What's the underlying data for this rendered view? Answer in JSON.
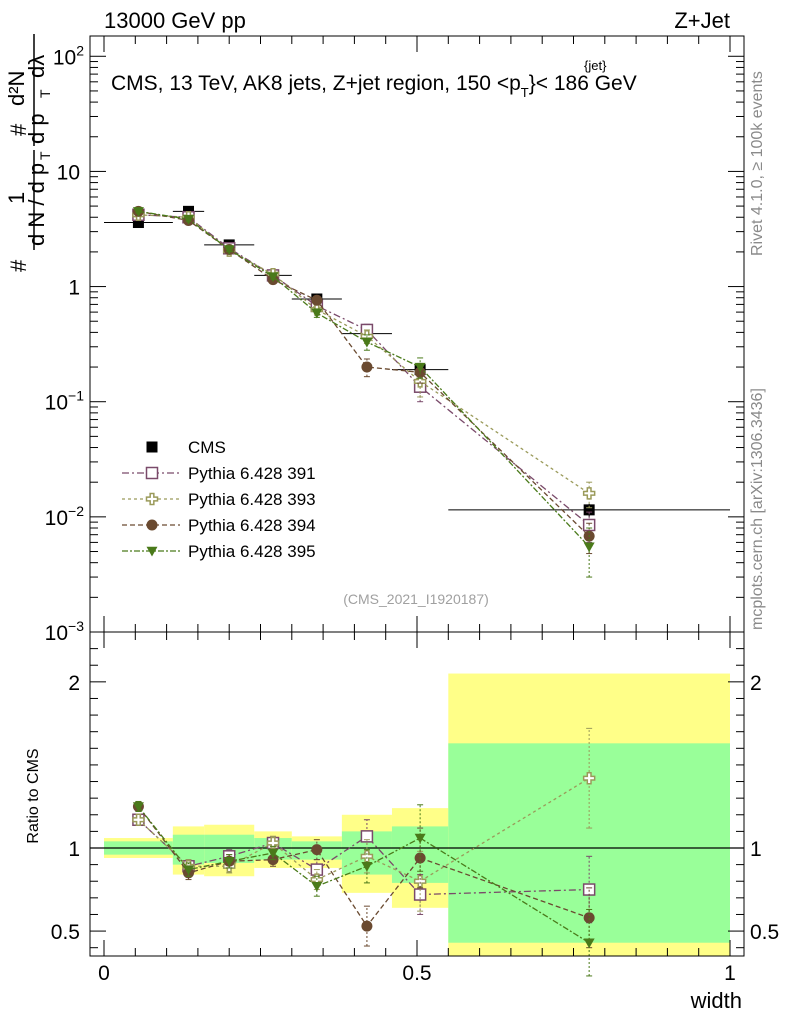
{
  "header": {
    "left": "13000 GeV pp",
    "right": "Z+Jet"
  },
  "side_labels": {
    "rivet": "Rivet 4.1.0, ≥ 100k events",
    "mcplots": "mcplots.cern.ch [arXiv:1306.3436]"
  },
  "watermark": "(CMS_2021_I1920187)",
  "colors": {
    "cms": "#000000",
    "p391": "#7a4a6a",
    "p393": "#9a9a5a",
    "p394": "#6a4a30",
    "p395": "#4a7a1a",
    "band_yellow": "#ffff88",
    "band_green": "#99ff99"
  },
  "chart_data": [
    {
      "id": "main",
      "type": "scatter",
      "title": "CMS, 13 TeV, AK8 jets, Z+jet region, 150 <p_T^{jet}< 186 GeV",
      "title_parts": {
        "a": "CMS, 13 TeV, AK8 jets, Z+jet region, 150 <p",
        "sub": "T",
        "sup": "{jet}",
        "b": "}< 186 GeV"
      },
      "ylabel_parts": {
        "n1": "#",
        "one": "1",
        "dN": "d N / d p",
        "T1": "T",
        "n2": "#",
        "d2N": "d²N",
        "dpT": "d p",
        "T2": "T",
        "dlam": "dλ"
      },
      "yscale": "log",
      "ylim": [
        0.001,
        150
      ],
      "xlim": [
        0,
        1
      ],
      "ytick_labels": [
        {
          "v": 100,
          "base": "10",
          "exp": "2"
        },
        {
          "v": 10,
          "base": "10",
          "exp": ""
        },
        {
          "v": 1,
          "base": "1",
          "exp": ""
        },
        {
          "v": 0.1,
          "base": "10",
          "exp": "−1"
        },
        {
          "v": 0.01,
          "base": "10",
          "exp": "−2"
        },
        {
          "v": 0.001,
          "base": "10",
          "exp": "−3"
        }
      ],
      "x": [
        0.055,
        0.135,
        0.2,
        0.27,
        0.34,
        0.42,
        0.505,
        0.775
      ],
      "xerr": [
        0.055,
        0.025,
        0.04,
        0.03,
        0.04,
        0.04,
        0.045,
        0.225
      ],
      "series": [
        {
          "key": "cms",
          "name": "CMS",
          "marker": "square-filled",
          "values": [
            3.6,
            4.5,
            2.3,
            1.25,
            0.78,
            0.39,
            0.19,
            0.0115
          ],
          "err_low": [
            0.15,
            0.15,
            0.08,
            0.05,
            0.04,
            0.03,
            0.02,
            0.0015
          ],
          "err_high": [
            0.15,
            0.15,
            0.08,
            0.05,
            0.04,
            0.03,
            0.02,
            0.0015
          ]
        },
        {
          "key": "p391",
          "name": "Pythia 6.428 391",
          "marker": "square-open",
          "dash": "7,3,2,3",
          "values": [
            4.2,
            4.0,
            2.15,
            1.25,
            0.68,
            0.42,
            0.135,
            0.0085
          ],
          "err_low": [
            0.15,
            0.15,
            0.08,
            0.06,
            0.05,
            0.05,
            0.035,
            0.0025
          ],
          "err_high": [
            0.15,
            0.15,
            0.08,
            0.06,
            0.05,
            0.05,
            0.035,
            0.0025
          ]
        },
        {
          "key": "p393",
          "name": "Pythia 6.428 393",
          "marker": "cross-open",
          "dash": "3,3",
          "values": [
            4.2,
            4.0,
            2.05,
            1.28,
            0.63,
            0.37,
            0.15,
            0.016
          ],
          "err_low": [
            0.15,
            0.15,
            0.08,
            0.06,
            0.05,
            0.05,
            0.04,
            0.004
          ],
          "err_high": [
            0.15,
            0.15,
            0.08,
            0.06,
            0.05,
            0.05,
            0.04,
            0.004
          ]
        },
        {
          "key": "p394",
          "name": "Pythia 6.428 394",
          "marker": "circle-filled",
          "dash": "5,3",
          "values": [
            4.5,
            3.75,
            2.1,
            1.15,
            0.76,
            0.2,
            0.18,
            0.0068
          ],
          "err_low": [
            0.15,
            0.15,
            0.08,
            0.06,
            0.05,
            0.035,
            0.035,
            0.002
          ],
          "err_high": [
            0.15,
            0.15,
            0.08,
            0.06,
            0.05,
            0.035,
            0.035,
            0.002
          ]
        },
        {
          "key": "p395",
          "name": "Pythia 6.428 395",
          "marker": "triangle-down-filled",
          "dash": "6,2,2,2",
          "values": [
            4.5,
            3.85,
            2.1,
            1.22,
            0.59,
            0.33,
            0.2,
            0.0055
          ],
          "err_low": [
            0.15,
            0.15,
            0.08,
            0.06,
            0.05,
            0.05,
            0.04,
            0.0025
          ],
          "err_high": [
            0.15,
            0.15,
            0.08,
            0.06,
            0.05,
            0.05,
            0.04,
            0.0025
          ]
        }
      ]
    },
    {
      "id": "ratio",
      "type": "scatter",
      "ylabel": "Ratio to CMS",
      "xlabel": "width",
      "ylim": [
        0.35,
        2.3
      ],
      "xlim": [
        0,
        1
      ],
      "xtick_labels": [
        {
          "v": 0,
          "t": "0"
        },
        {
          "v": 0.5,
          "t": "0.5"
        },
        {
          "v": 1,
          "t": "1"
        }
      ],
      "ytick_labels": [
        {
          "v": 2,
          "t": "2"
        },
        {
          "v": 1,
          "t": "1"
        },
        {
          "v": 0.5,
          "t": "0.5"
        }
      ],
      "bands": [
        {
          "x0": 0.0,
          "x1": 0.11,
          "y_lo": 0.94,
          "y_hi": 1.06,
          "g_lo": 0.96,
          "g_hi": 1.04
        },
        {
          "x0": 0.11,
          "x1": 0.16,
          "y_lo": 0.84,
          "y_hi": 1.13,
          "g_lo": 0.9,
          "g_hi": 1.08
        },
        {
          "x0": 0.16,
          "x1": 0.24,
          "y_lo": 0.83,
          "y_hi": 1.14,
          "g_lo": 0.91,
          "g_hi": 1.08
        },
        {
          "x0": 0.24,
          "x1": 0.3,
          "y_lo": 0.88,
          "y_hi": 1.1,
          "g_lo": 0.93,
          "g_hi": 1.06
        },
        {
          "x0": 0.3,
          "x1": 0.38,
          "y_lo": 0.88,
          "y_hi": 1.07,
          "g_lo": 0.93,
          "g_hi": 1.04
        },
        {
          "x0": 0.38,
          "x1": 0.46,
          "y_lo": 0.73,
          "y_hi": 1.2,
          "g_lo": 0.84,
          "g_hi": 1.1
        },
        {
          "x0": 0.46,
          "x1": 0.55,
          "y_lo": 0.64,
          "y_hi": 1.24,
          "g_lo": 0.79,
          "g_hi": 1.13
        },
        {
          "x0": 0.55,
          "x1": 1.0,
          "y_lo": 0.34,
          "y_hi": 2.05,
          "g_lo": 0.43,
          "g_hi": 1.63
        }
      ],
      "x": [
        0.055,
        0.135,
        0.2,
        0.27,
        0.34,
        0.42,
        0.505,
        0.775
      ],
      "series": [
        {
          "key": "p391",
          "marker": "square-open",
          "dash": "7,3,2,3",
          "values": [
            1.17,
            0.89,
            0.95,
            1.03,
            0.87,
            1.07,
            0.72,
            0.75
          ],
          "err": [
            0.03,
            0.04,
            0.04,
            0.04,
            0.06,
            0.1,
            0.12,
            0.2
          ]
        },
        {
          "key": "p393",
          "marker": "cross-open",
          "dash": "3,3",
          "values": [
            1.17,
            0.89,
            0.89,
            1.03,
            0.81,
            0.95,
            0.8,
            1.42
          ],
          "err": [
            0.03,
            0.04,
            0.04,
            0.04,
            0.06,
            0.1,
            0.18,
            0.3
          ]
        },
        {
          "key": "p394",
          "marker": "circle-filled",
          "dash": "5,3",
          "values": [
            1.25,
            0.85,
            0.92,
            0.93,
            0.99,
            0.53,
            0.94,
            0.58
          ],
          "err": [
            0.03,
            0.04,
            0.04,
            0.04,
            0.06,
            0.12,
            0.18,
            0.18
          ]
        },
        {
          "key": "p395",
          "marker": "triangle-down-filled",
          "dash": "6,2,2,2",
          "values": [
            1.25,
            0.87,
            0.92,
            0.97,
            0.77,
            0.89,
            1.06,
            0.43
          ],
          "err": [
            0.03,
            0.04,
            0.04,
            0.04,
            0.06,
            0.1,
            0.2,
            0.2
          ]
        }
      ]
    }
  ]
}
